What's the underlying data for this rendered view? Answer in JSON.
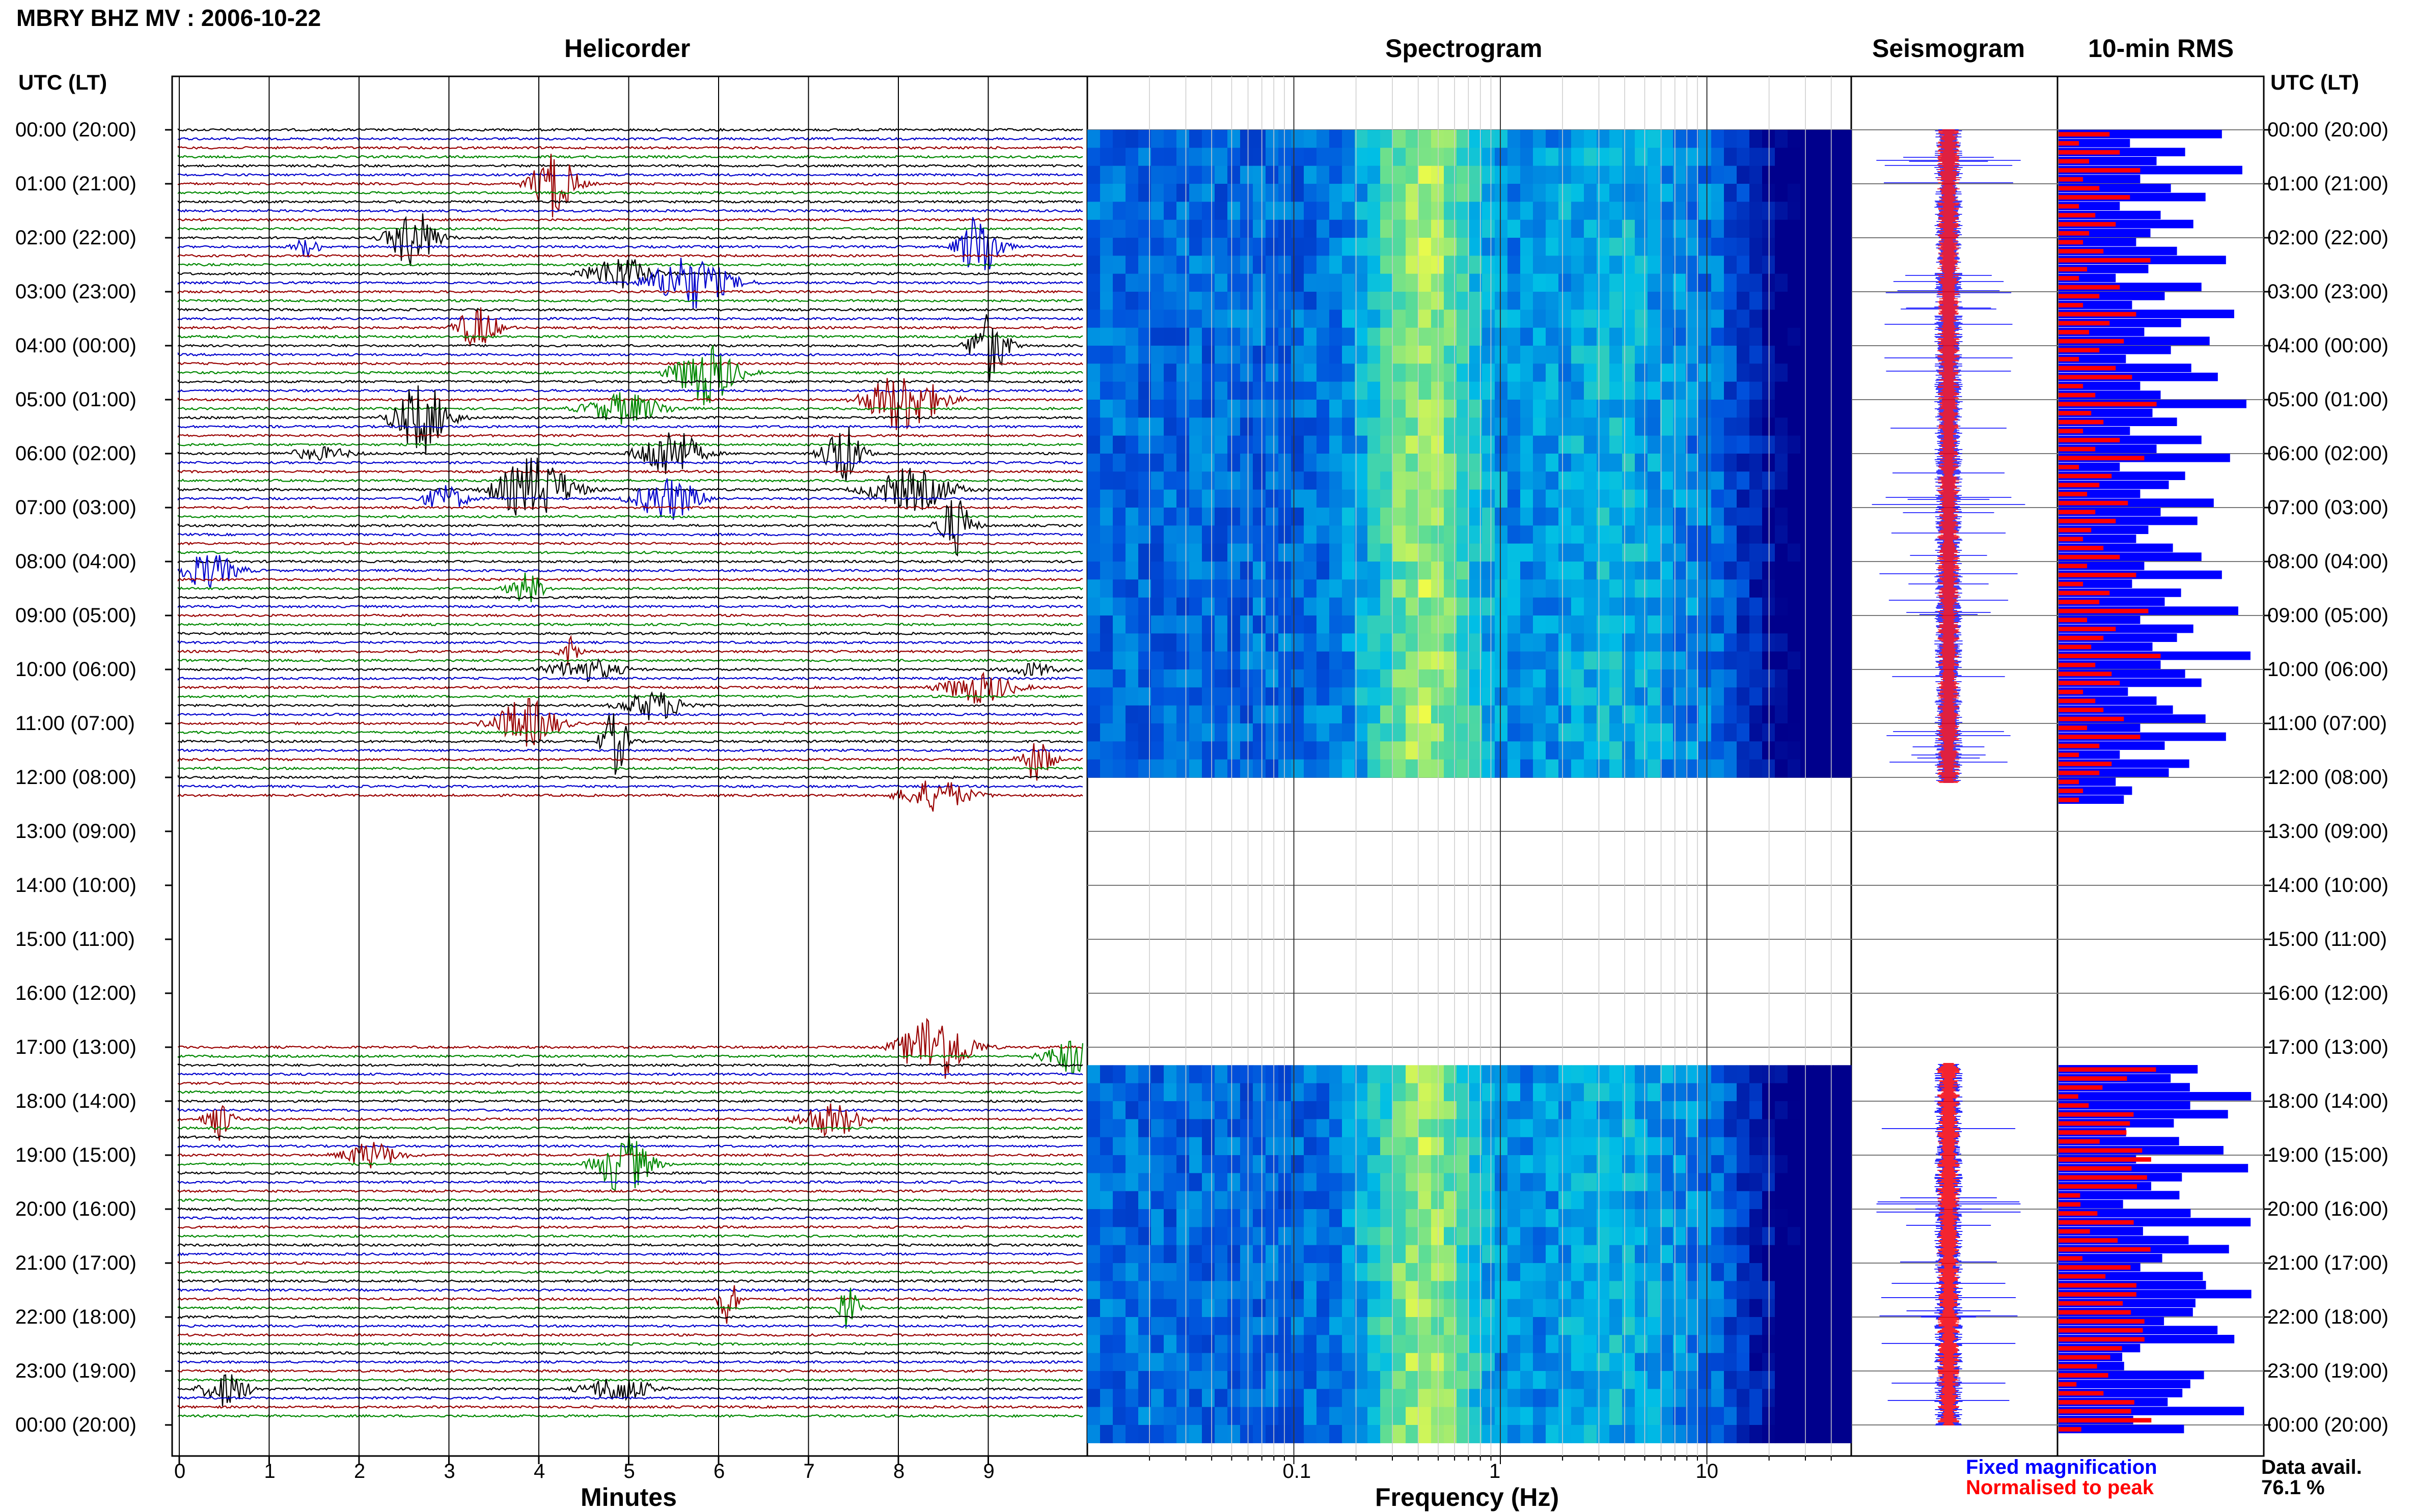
{
  "header": {
    "title": "MBRY BHZ MV : 2006-10-22"
  },
  "panels": {
    "helicorder": "Helicorder",
    "spectrogram": "Spectrogram",
    "seismogram": "Seismogram",
    "rms": "10-min RMS"
  },
  "axis_header": {
    "left": "UTC (LT)",
    "right": "UTC (LT)"
  },
  "hour_labels": [
    "00:00 (20:00)",
    "01:00 (21:00)",
    "02:00 (22:00)",
    "03:00 (23:00)",
    "04:00 (00:00)",
    "05:00 (01:00)",
    "06:00 (02:00)",
    "07:00 (03:00)",
    "08:00 (04:00)",
    "09:00 (05:00)",
    "10:00 (06:00)",
    "11:00 (07:00)",
    "12:00 (08:00)",
    "13:00 (09:00)",
    "14:00 (10:00)",
    "15:00 (11:00)",
    "16:00 (12:00)",
    "17:00 (13:00)",
    "18:00 (14:00)",
    "19:00 (15:00)",
    "20:00 (16:00)",
    "21:00 (17:00)",
    "22:00 (18:00)",
    "23:00 (19:00)",
    "00:00 (20:00)"
  ],
  "x_axes": {
    "helicorder": {
      "label": "Minutes",
      "ticks": [
        "0",
        "1",
        "2",
        "3",
        "4",
        "5",
        "6",
        "7",
        "8",
        "9"
      ]
    },
    "spectrogram": {
      "label": "Frequency (Hz)",
      "ticks": [
        "0.1",
        "1",
        "10"
      ],
      "scale": "log"
    }
  },
  "legend": {
    "fixed": "Fixed magnification",
    "normalised": "Normalised to peak"
  },
  "data_availability": {
    "label": "Data avail.",
    "value": "76.1 %"
  },
  "colors": {
    "trace_black": "#000000",
    "trace_blue": "#0000cc",
    "trace_red": "#990000",
    "trace_green": "#008800",
    "fixed_mag": "#0000ff",
    "normalised": "#ff0000",
    "spec_low": "#00008c",
    "spec_high": "#ffff40"
  },
  "chart_data": [
    {
      "type": "line",
      "title": "Helicorder",
      "xlabel": "Minutes",
      "xlim": [
        0,
        10
      ],
      "trace_colors_cycle": [
        "black",
        "blue",
        "red",
        "green"
      ],
      "data_gap_hours": [
        12.5,
        17.0
      ]
    },
    {
      "type": "heatmap",
      "title": "Spectrogram",
      "xlabel": "Frequency (Hz)",
      "x_scale": "log",
      "peak_energy_hz": 0.4,
      "data_gap_hours": [
        12.0,
        17.25
      ]
    },
    {
      "type": "line",
      "title": "Seismogram",
      "series": [
        {
          "name": "Fixed magnification"
        },
        {
          "name": "Normalised to peak"
        }
      ]
    },
    {
      "type": "bar",
      "title": "10-min RMS",
      "orientation": "horizontal",
      "series": [
        {
          "name": "Fixed magnification",
          "values": [
            0.8,
            0.35,
            0.62,
            0.48,
            0.9,
            0.4,
            0.55,
            0.72,
            0.3,
            0.5,
            0.66,
            0.45,
            0.38,
            0.58,
            0.82,
            0.44,
            0.28,
            0.7,
            0.52,
            0.36,
            0.86,
            0.6,
            0.42,
            0.74,
            0.55,
            0.33,
            0.65,
            0.78,
            0.4,
            0.5,
            0.92,
            0.46,
            0.58,
            0.35,
            0.7,
            0.48,
            0.84,
            0.3,
            0.62,
            0.54,
            0.4,
            0.76,
            0.5,
            0.68,
            0.44,
            0.38,
            0.56,
            0.7,
            0.42,
            0.8,
            0.36,
            0.6,
            0.52,
            0.88,
            0.4,
            0.66,
            0.58,
            0.46,
            0.94,
            0.5,
            0.62,
            0.7,
            0.34,
            0.48,
            0.56,
            0.72,
            0.4,
            0.82,
            0.52,
            0.3,
            0.64,
            0.54,
            0.28,
            0.36,
            0.32
          ],
          "gap_after_index": 74
        },
        {
          "name": "Normalised to peak",
          "values": [
            0.25,
            0.1,
            0.3,
            0.15,
            0.4,
            0.12,
            0.2,
            0.35,
            0.1,
            0.18,
            0.28,
            0.15,
            0.12,
            0.22,
            0.45,
            0.14,
            0.1,
            0.3,
            0.2,
            0.12,
            0.38,
            0.25,
            0.15,
            0.32,
            0.2,
            0.1,
            0.28,
            0.36,
            0.12,
            0.18,
            0.48,
            0.16,
            0.22,
            0.12,
            0.3,
            0.18,
            0.42,
            0.1,
            0.26,
            0.2,
            0.14,
            0.34,
            0.18,
            0.28,
            0.16,
            0.12,
            0.22,
            0.3,
            0.14,
            0.38,
            0.12,
            0.25,
            0.2,
            0.44,
            0.14,
            0.28,
            0.22,
            0.16,
            0.5,
            0.18,
            0.26,
            0.3,
            0.12,
            0.18,
            0.22,
            0.32,
            0.14,
            0.4,
            0.2,
            0.1,
            0.26,
            0.2,
            0.1,
            0.12,
            0.1
          ]
        }
      ]
    }
  ]
}
